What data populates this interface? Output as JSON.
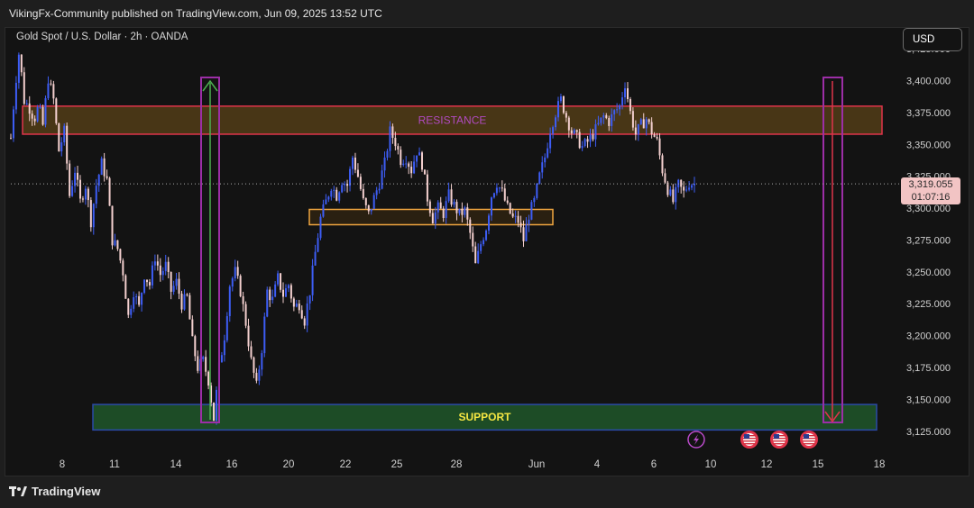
{
  "header": {
    "published": "VikingFx-Community published on TradingView.com, Jun 09, 2025 13:52 UTC"
  },
  "symbol": {
    "title": "Gold Spot / U.S. Dollar · 2h · OANDA"
  },
  "currency_button": {
    "label": "USD"
  },
  "last_price": {
    "price": "3,319.055",
    "countdown": "01:07:16"
  },
  "footer": {
    "brand": "TradingView",
    "logo_icon": "tradingview-logo-icon"
  },
  "colors": {
    "up": "#3d5df5",
    "down": "#f4d0cf",
    "resistance_fill": "#4d3a17",
    "resistance_border": "#e0344b",
    "support_fill": "#1e5128",
    "support_border": "#2b4aa8",
    "box_purple": "#9c2ea6",
    "consolidation": "#f0a640",
    "arrow_up": "#4caf50",
    "arrow_down": "#e0344b"
  },
  "chart_data": {
    "type": "candlestick",
    "y_axis": {
      "min": 3110,
      "max": 3435,
      "ticks": [
        "3,125.000",
        "3,150.000",
        "3,175.000",
        "3,200.000",
        "3,225.000",
        "3,250.000",
        "3,275.000",
        "3,300.000",
        "3,325.000",
        "3,350.000",
        "3,375.000",
        "3,400.000",
        "3,425.000"
      ],
      "tick_values": [
        3125,
        3150,
        3175,
        3200,
        3225,
        3250,
        3275,
        3300,
        3325,
        3350,
        3375,
        3400,
        3425
      ]
    },
    "x_axis": {
      "labels": [
        "8",
        "11",
        "14",
        "16",
        "20",
        "22",
        "25",
        "28",
        "Jun",
        "4",
        "6",
        "10",
        "12",
        "15",
        "18"
      ]
    },
    "price_path": [
      {
        "t": 0,
        "p": 3355
      },
      {
        "t": 4,
        "p": 3395
      },
      {
        "t": 8,
        "p": 3425
      },
      {
        "t": 12,
        "p": 3385
      },
      {
        "t": 18,
        "p": 3378
      },
      {
        "t": 22,
        "p": 3370
      },
      {
        "t": 26,
        "p": 3380
      },
      {
        "t": 30,
        "p": 3365
      },
      {
        "t": 35,
        "p": 3402
      },
      {
        "t": 40,
        "p": 3385
      },
      {
        "t": 45,
        "p": 3345
      },
      {
        "t": 50,
        "p": 3360
      },
      {
        "t": 55,
        "p": 3310
      },
      {
        "t": 60,
        "p": 3330
      },
      {
        "t": 65,
        "p": 3305
      },
      {
        "t": 70,
        "p": 3318
      },
      {
        "t": 75,
        "p": 3290
      },
      {
        "t": 80,
        "p": 3318
      },
      {
        "t": 85,
        "p": 3335
      },
      {
        "t": 90,
        "p": 3322
      },
      {
        "t": 95,
        "p": 3275
      },
      {
        "t": 100,
        "p": 3268
      },
      {
        "t": 105,
        "p": 3250
      },
      {
        "t": 110,
        "p": 3215
      },
      {
        "t": 115,
        "p": 3235
      },
      {
        "t": 120,
        "p": 3222
      },
      {
        "t": 125,
        "p": 3248
      },
      {
        "t": 130,
        "p": 3240
      },
      {
        "t": 135,
        "p": 3262
      },
      {
        "t": 140,
        "p": 3248
      },
      {
        "t": 145,
        "p": 3255
      },
      {
        "t": 150,
        "p": 3235
      },
      {
        "t": 155,
        "p": 3242
      },
      {
        "t": 160,
        "p": 3225
      },
      {
        "t": 165,
        "p": 3230
      },
      {
        "t": 170,
        "p": 3195
      },
      {
        "t": 175,
        "p": 3175
      },
      {
        "t": 180,
        "p": 3180
      },
      {
        "t": 185,
        "p": 3165
      },
      {
        "t": 190,
        "p": 3135
      },
      {
        "t": 195,
        "p": 3175
      },
      {
        "t": 200,
        "p": 3200
      },
      {
        "t": 205,
        "p": 3240
      },
      {
        "t": 210,
        "p": 3250
      },
      {
        "t": 215,
        "p": 3235
      },
      {
        "t": 220,
        "p": 3210
      },
      {
        "t": 225,
        "p": 3180
      },
      {
        "t": 230,
        "p": 3160
      },
      {
        "t": 235,
        "p": 3190
      },
      {
        "t": 240,
        "p": 3235
      },
      {
        "t": 245,
        "p": 3228
      },
      {
        "t": 250,
        "p": 3245
      },
      {
        "t": 255,
        "p": 3232
      },
      {
        "t": 260,
        "p": 3240
      },
      {
        "t": 265,
        "p": 3222
      },
      {
        "t": 270,
        "p": 3225
      },
      {
        "t": 275,
        "p": 3212
      },
      {
        "t": 280,
        "p": 3235
      },
      {
        "t": 285,
        "p": 3265
      },
      {
        "t": 290,
        "p": 3292
      },
      {
        "t": 295,
        "p": 3305
      },
      {
        "t": 300,
        "p": 3318
      },
      {
        "t": 305,
        "p": 3310
      },
      {
        "t": 310,
        "p": 3322
      },
      {
        "t": 315,
        "p": 3318
      },
      {
        "t": 320,
        "p": 3340
      },
      {
        "t": 325,
        "p": 3325
      },
      {
        "t": 330,
        "p": 3305
      },
      {
        "t": 335,
        "p": 3295
      },
      {
        "t": 340,
        "p": 3308
      },
      {
        "t": 345,
        "p": 3320
      },
      {
        "t": 350,
        "p": 3335
      },
      {
        "t": 355,
        "p": 3360
      },
      {
        "t": 360,
        "p": 3352
      },
      {
        "t": 365,
        "p": 3338
      },
      {
        "t": 370,
        "p": 3340
      },
      {
        "t": 375,
        "p": 3330
      },
      {
        "t": 380,
        "p": 3345
      },
      {
        "t": 385,
        "p": 3335
      },
      {
        "t": 390,
        "p": 3308
      },
      {
        "t": 395,
        "p": 3292
      },
      {
        "t": 400,
        "p": 3300
      },
      {
        "t": 405,
        "p": 3296
      },
      {
        "t": 410,
        "p": 3310
      },
      {
        "t": 415,
        "p": 3302
      },
      {
        "t": 420,
        "p": 3295
      },
      {
        "t": 425,
        "p": 3298
      },
      {
        "t": 430,
        "p": 3280
      },
      {
        "t": 435,
        "p": 3255
      },
      {
        "t": 440,
        "p": 3272
      },
      {
        "t": 445,
        "p": 3285
      },
      {
        "t": 450,
        "p": 3310
      },
      {
        "t": 455,
        "p": 3320
      },
      {
        "t": 460,
        "p": 3312
      },
      {
        "t": 465,
        "p": 3300
      },
      {
        "t": 470,
        "p": 3292
      },
      {
        "t": 475,
        "p": 3290
      },
      {
        "t": 480,
        "p": 3275
      },
      {
        "t": 485,
        "p": 3295
      },
      {
        "t": 490,
        "p": 3305
      },
      {
        "t": 495,
        "p": 3325
      },
      {
        "t": 500,
        "p": 3340
      },
      {
        "t": 505,
        "p": 3362
      },
      {
        "t": 510,
        "p": 3375
      },
      {
        "t": 515,
        "p": 3385
      },
      {
        "t": 520,
        "p": 3372
      },
      {
        "t": 525,
        "p": 3360
      },
      {
        "t": 530,
        "p": 3355
      },
      {
        "t": 535,
        "p": 3348
      },
      {
        "t": 540,
        "p": 3352
      },
      {
        "t": 545,
        "p": 3358
      },
      {
        "t": 550,
        "p": 3365
      },
      {
        "t": 555,
        "p": 3372
      },
      {
        "t": 560,
        "p": 3368
      },
      {
        "t": 565,
        "p": 3375
      },
      {
        "t": 570,
        "p": 3380
      },
      {
        "t": 575,
        "p": 3398
      },
      {
        "t": 580,
        "p": 3375
      },
      {
        "t": 585,
        "p": 3358
      },
      {
        "t": 590,
        "p": 3365
      },
      {
        "t": 595,
        "p": 3370
      },
      {
        "t": 600,
        "p": 3360
      },
      {
        "t": 605,
        "p": 3352
      },
      {
        "t": 610,
        "p": 3330
      },
      {
        "t": 615,
        "p": 3315
      },
      {
        "t": 620,
        "p": 3305
      },
      {
        "t": 625,
        "p": 3318
      },
      {
        "t": 630,
        "p": 3312
      },
      {
        "t": 635,
        "p": 3320
      },
      {
        "t": 640,
        "p": 3319
      }
    ],
    "zones": [
      {
        "label": "RESISTANCE",
        "from": 3358,
        "to": 3380
      },
      {
        "label": "SUPPORT",
        "from": 3126,
        "to": 3146
      },
      {
        "label": "",
        "from": 3287,
        "to": 3299
      }
    ],
    "last_price": 3319.055,
    "events": [
      {
        "icon": "lightning-icon"
      },
      {
        "icon": "us-flag-icon"
      },
      {
        "icon": "us-flag-icon"
      },
      {
        "icon": "us-flag-icon"
      }
    ],
    "grid": false
  }
}
